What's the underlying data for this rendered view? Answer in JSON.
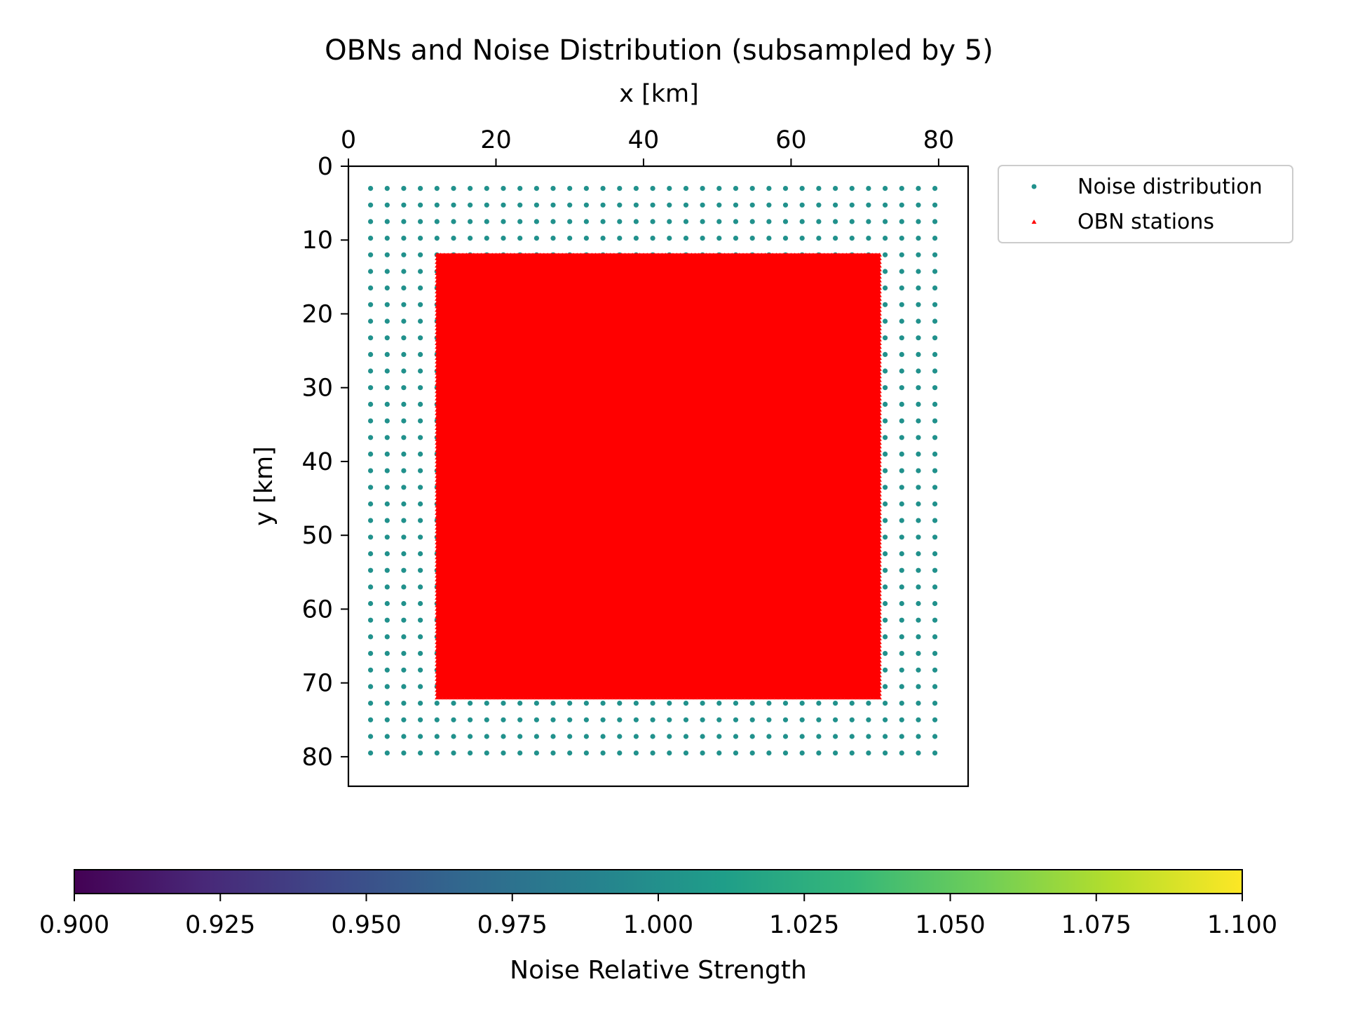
{
  "chart_data": [
    {
      "type": "scatter",
      "title": "OBNs and Noise Distribution (subsampled by 5)",
      "xlabel": "x [km]",
      "ylabel": "y [km]",
      "xlim": [
        0,
        84
      ],
      "ylim": [
        84,
        0
      ],
      "x_axis_position": "top",
      "y_axis_inverted": true,
      "x_ticks": [
        0,
        20,
        40,
        60,
        80
      ],
      "y_ticks": [
        0,
        10,
        20,
        30,
        40,
        50,
        60,
        70,
        80
      ],
      "grid": false,
      "legend_position": "outside-top-right",
      "series": [
        {
          "name": "Noise distribution",
          "marker": "circle",
          "color": "#21918c",
          "grid_points": {
            "x_start": 3,
            "x_end": 79.5,
            "y_start": 3,
            "y_end": 79.5,
            "count_x": 35,
            "count_y": 35
          }
        },
        {
          "name": "OBN stations",
          "marker": "triangle",
          "color": "#ff0000",
          "grid_points": {
            "x_start": 12,
            "x_end": 72,
            "y_start": 12,
            "y_end": 72,
            "count_x": 121,
            "count_y": 121
          }
        }
      ]
    },
    {
      "type": "colorbar",
      "label": "Noise Relative Strength",
      "range": [
        0.9,
        1.1
      ],
      "ticks": [
        "0.900",
        "0.925",
        "0.950",
        "0.975",
        "1.000",
        "1.025",
        "1.050",
        "1.075",
        "1.100"
      ],
      "colormap": "viridis",
      "colormap_stops": [
        "#440154",
        "#482878",
        "#3e4989",
        "#31688e",
        "#26828e",
        "#1f9e89",
        "#35b779",
        "#6ece58",
        "#b5de2b",
        "#fde725"
      ]
    }
  ]
}
